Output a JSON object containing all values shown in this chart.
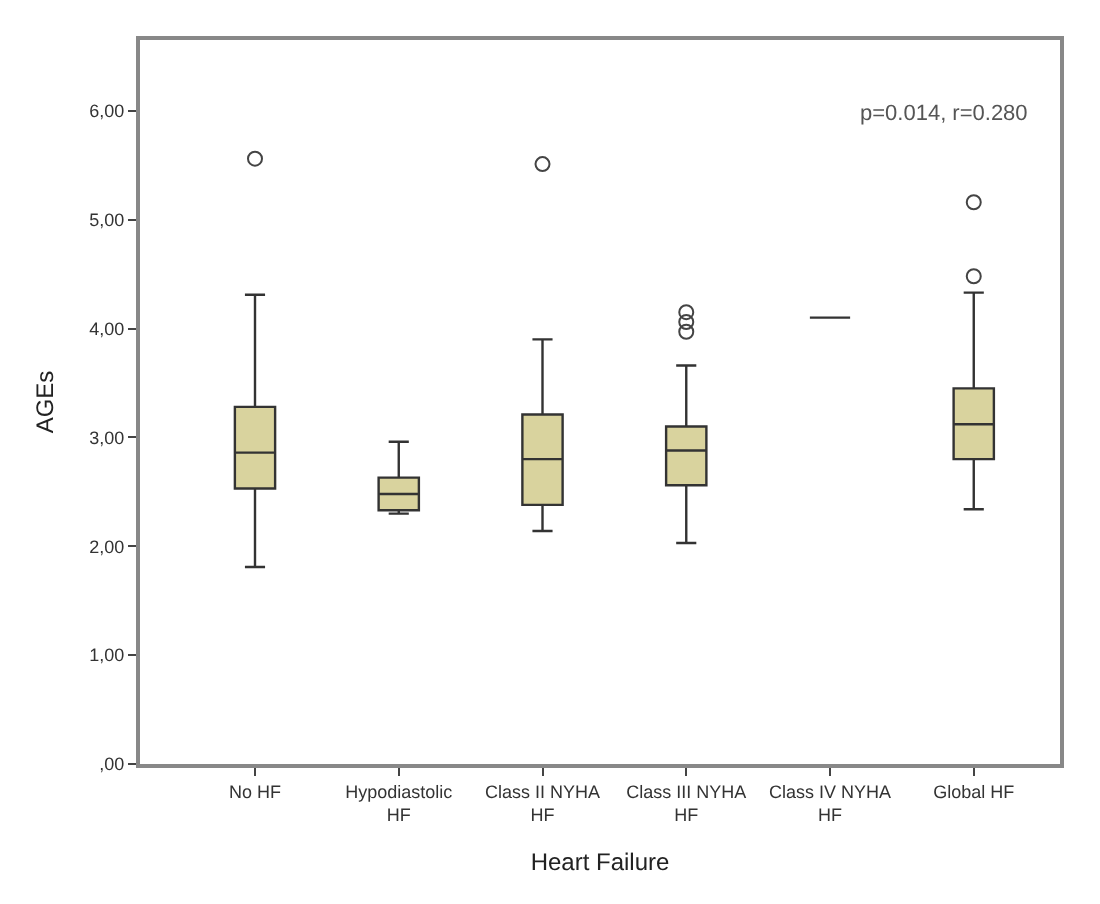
{
  "chart_data": {
    "type": "box",
    "xlabel": "Heart Failure",
    "ylabel": "AGEs",
    "categories": [
      "No HF",
      "Hypodiastolic HF",
      "Class II NYHA HF",
      "Class III NYHA HF",
      "Class IV NYHA HF",
      "Global HF"
    ],
    "boxes": [
      {
        "low": 1.81,
        "q1": 2.53,
        "median": 2.86,
        "q3": 3.28,
        "high": 4.31,
        "outliers": [
          5.56
        ]
      },
      {
        "low": 2.3,
        "q1": 2.33,
        "median": 2.48,
        "q3": 2.63,
        "high": 2.96
      },
      {
        "low": 2.14,
        "q1": 2.38,
        "median": 2.8,
        "q3": 3.21,
        "high": 3.9,
        "outliers": [
          5.51
        ]
      },
      {
        "low": 2.03,
        "q1": 2.56,
        "median": 2.88,
        "q3": 3.1,
        "high": 3.66,
        "outliers": [
          3.97,
          4.06,
          4.15
        ]
      },
      {
        "low": 4.1,
        "q1": 4.1,
        "median": 4.1,
        "q3": 4.1,
        "high": 4.1
      },
      {
        "low": 2.34,
        "q1": 2.8,
        "median": 3.12,
        "q3": 3.45,
        "high": 4.33,
        "outliers": [
          4.48,
          5.16
        ]
      }
    ],
    "colors": [
      "#d9d39e",
      "#d9d39e",
      "#d9d39e",
      "#d9d39e",
      "#333333",
      "#d9d39e"
    ],
    "ylim": [
      0,
      6.65
    ],
    "yticks": [
      {
        "value": 0,
        "label": ",00"
      },
      {
        "value": 1,
        "label": "1,00"
      },
      {
        "value": 2,
        "label": "2,00"
      },
      {
        "value": 3,
        "label": "3,00"
      },
      {
        "value": 4,
        "label": "4,00"
      },
      {
        "value": 5,
        "label": "5,00"
      },
      {
        "value": 6,
        "label": "6,00"
      }
    ],
    "annotations": [
      "p=0.014, r=0.280"
    ],
    "marker": "circle"
  }
}
